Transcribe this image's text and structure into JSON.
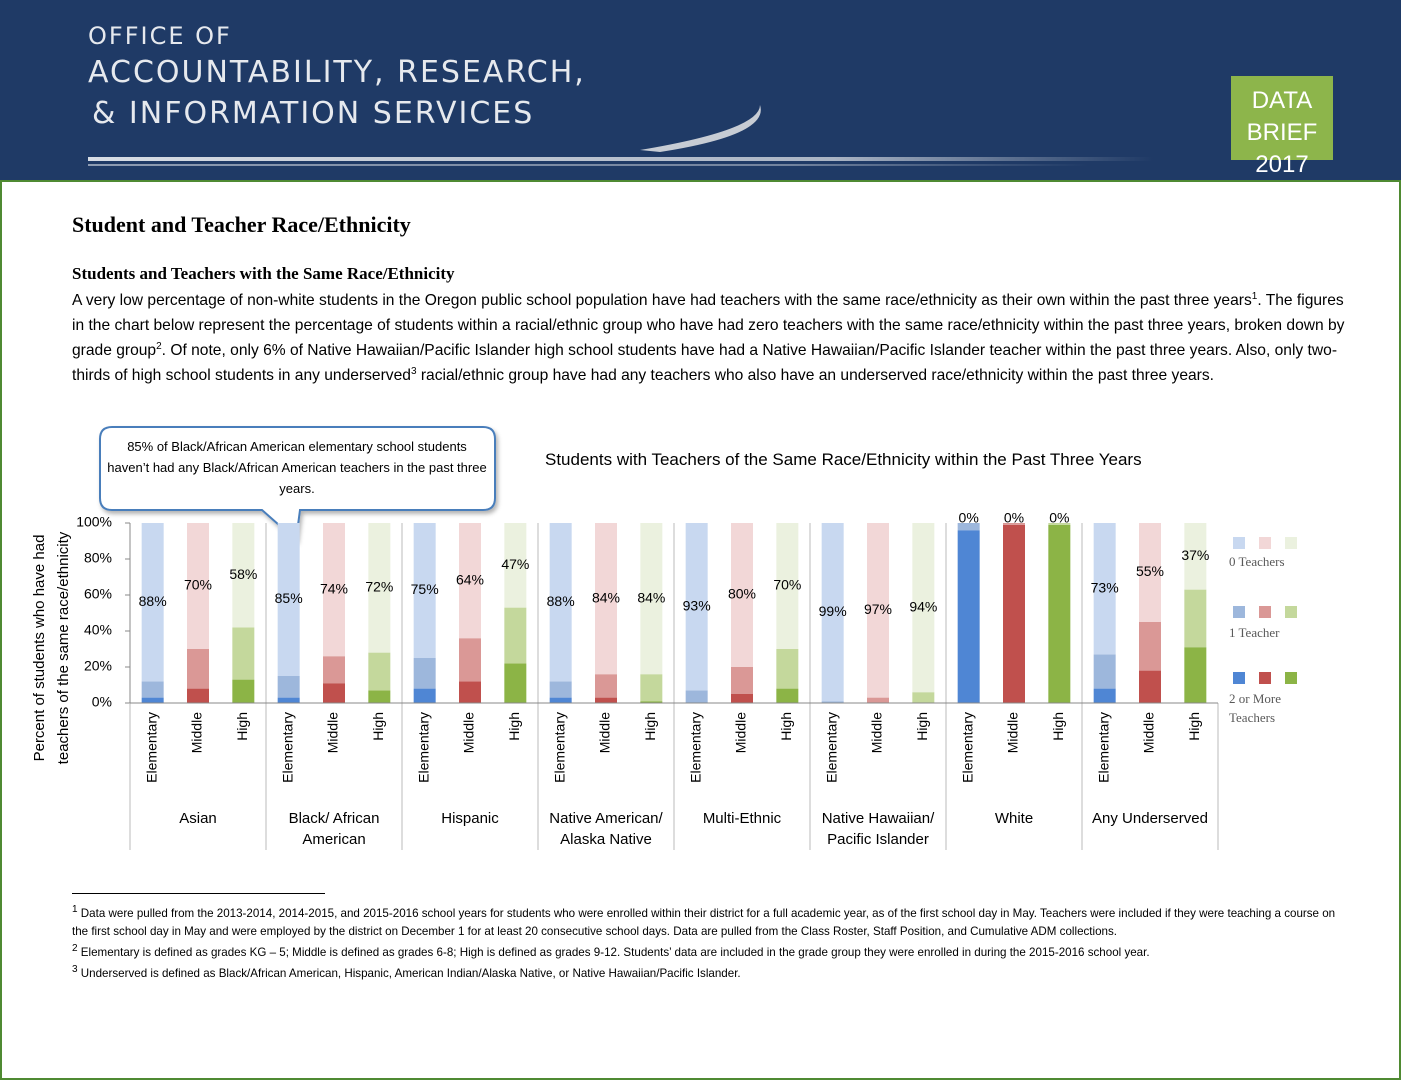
{
  "header": {
    "line1": "OFFICE OF",
    "line2": "ACCOUNTABILITY, RESEARCH,",
    "line3": "& INFORMATION SERVICES",
    "badge": [
      "DATA BRIEF",
      "2017"
    ]
  },
  "heading": "Student and Teacher Race/Ethnicity",
  "subheading": "Students and Teachers with the Same Race/Ethnicity",
  "paragraph": [
    {
      "text": "A very low percentage of non-white students in the Oregon public school population have had teachers with the same race/ethnicity as their own within the past three years"
    },
    {
      "sup": "1"
    },
    {
      "text": ".  The figures in the chart below represent the percentage of students within a racial/ethnic group who have had zero teachers with the same race/ethnicity within the past three years, broken down by grade group"
    },
    {
      "sup": "2"
    },
    {
      "text": ".  Of note, only 6% of Native Hawaiian/Pacific Islander high school students have had a Native Hawaiian/Pacific Islander teacher within the past three years.  Also, only two-thirds of high school students in any underserved"
    },
    {
      "sup": "3"
    },
    {
      "text": " racial/ethnic group have had any teachers who also have an underserved race/ethnicity within the past three years."
    }
  ],
  "chart_data": {
    "type": "bar",
    "stacked": true,
    "title": "Students with Teachers of the Same Race/Ethnicity within the Past Three Years",
    "y_label": [
      "Percent of students who have had",
      "teachers of the same race/ethnicity"
    ],
    "annotation": "85% of Black/African American elementary school students haven’t had any Black/African American teachers in the past three years.",
    "groups": [
      "Asian",
      "Black/ African American",
      "Hispanic",
      "Native American/ Alaska Native",
      "Multi-Ethnic",
      "Native Hawaiian/ Pacific Islander",
      "White",
      "Any Underserved"
    ],
    "categories": [
      "Elementary",
      "Middle",
      "High",
      "Elementary",
      "Middle",
      "High",
      "Elementary",
      "Middle",
      "High",
      "Elementary",
      "Middle",
      "High",
      "Elementary",
      "Middle",
      "High",
      "Elementary",
      "Middle",
      "High",
      "Elementary",
      "Middle",
      "High",
      "Elementary",
      "Middle",
      "High"
    ],
    "series": [
      {
        "name": "2 or More Teachers",
        "colors": [
          "#4f86d4",
          "#c0504d",
          "#8cb446"
        ],
        "values": [
          3,
          8,
          13,
          3,
          11,
          7,
          8,
          12,
          22,
          3,
          3,
          1,
          0,
          5,
          8,
          0,
          0,
          0,
          96,
          99,
          99,
          8,
          18,
          31
        ]
      },
      {
        "name": "1 Teacher",
        "colors": [
          "#9db7dc",
          "#da9896",
          "#c4d89c"
        ],
        "values": [
          9,
          22,
          29,
          12,
          15,
          21,
          17,
          24,
          31,
          9,
          13,
          15,
          7,
          15,
          22,
          1,
          3,
          6,
          4,
          1,
          1,
          19,
          27,
          32
        ]
      },
      {
        "name": "0 Teachers",
        "colors": [
          "#c8d8f0",
          "#f2d7d7",
          "#ebf1df"
        ],
        "values": [
          88,
          70,
          58,
          85,
          74,
          72,
          75,
          64,
          47,
          88,
          84,
          84,
          93,
          80,
          70,
          99,
          97,
          94,
          0,
          0,
          0,
          73,
          55,
          37
        ],
        "value_labels": [
          "88%",
          "70%",
          "58%",
          "85%",
          "74%",
          "72%",
          "75%",
          "64%",
          "47%",
          "88%",
          "84%",
          "84%",
          "93%",
          "80%",
          "70%",
          "99%",
          "97%",
          "94%",
          "0%",
          "0%",
          "0%",
          "73%",
          "55%",
          "37%"
        ]
      }
    ],
    "ylim": [
      0,
      100
    ],
    "yticks": [
      {
        "value": 0,
        "label": "0%"
      },
      {
        "value": 20,
        "label": "20%"
      },
      {
        "value": 40,
        "label": "40%"
      },
      {
        "value": 60,
        "label": "60%"
      },
      {
        "value": 80,
        "label": "80%"
      },
      {
        "value": 100,
        "label": "100%"
      }
    ]
  },
  "footnotes": [
    {
      "sup": "1",
      "text": " Data were pulled from the 2013-2014, 2014-2015, and 2015-2016 school years for students who were enrolled within their district for a full academic year, as of the first school day in May. Teachers were included if they were teaching a course on the first school day in May and were employed by the district on December 1 for at least 20 consecutive school days.  Data are pulled from the Class Roster, Staff Position, and Cumulative ADM collections."
    },
    {
      "sup": "2",
      "text": " Elementary is defined as grades KG – 5; Middle is defined as grades 6-8; High is defined as grades 9-12.  Students’ data are included in the grade group they were enrolled in during the 2015-2016 school year."
    },
    {
      "sup": "3",
      "text": " Underserved is defined as Black/African American, Hispanic, American Indian/Alaska Native, or Native Hawaiian/Pacific Islander."
    }
  ]
}
